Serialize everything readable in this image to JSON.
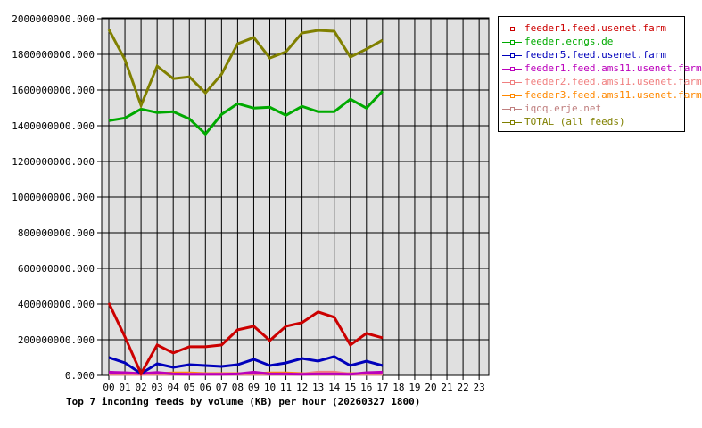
{
  "chart_data": {
    "type": "line",
    "title": "Top 7 incoming feeds by volume (KB) per hour (20260327 1800)",
    "xlabel": "",
    "ylabel": "",
    "ylim": [
      0,
      2000000000
    ],
    "y_ticks": [
      "0.000",
      "200000000.000",
      "400000000.000",
      "600000000.000",
      "800000000.000",
      "1000000000.000",
      "1200000000.000",
      "1400000000.000",
      "1600000000.000",
      "1800000000.000",
      "2000000000.000"
    ],
    "categories": [
      "00",
      "01",
      "02",
      "03",
      "04",
      "05",
      "06",
      "07",
      "08",
      "09",
      "10",
      "11",
      "12",
      "13",
      "14",
      "15",
      "16",
      "17",
      "18",
      "19",
      "20",
      "21",
      "22",
      "23"
    ],
    "grid": true,
    "legend_position": "right",
    "series": [
      {
        "name": "feeder1.feed.usenet.farm",
        "color": "#cc0000",
        "values": [
          405000000,
          215000000,
          10000000,
          170000000,
          125000000,
          160000000,
          160000000,
          170000000,
          255000000,
          275000000,
          195000000,
          275000000,
          295000000,
          355000000,
          325000000,
          170000000,
          235000000,
          210000000
        ]
      },
      {
        "name": "feeder.ecngs.de",
        "color": "#00aa00",
        "values": [
          1425000000,
          1440000000,
          1490000000,
          1470000000,
          1475000000,
          1435000000,
          1350000000,
          1460000000,
          1520000000,
          1495000000,
          1500000000,
          1455000000,
          1505000000,
          1475000000,
          1475000000,
          1545000000,
          1495000000,
          1590000000
        ]
      },
      {
        "name": "feeder5.feed.usenet.farm",
        "color": "#0000bb",
        "values": [
          100000000,
          70000000,
          10000000,
          65000000,
          45000000,
          60000000,
          55000000,
          50000000,
          60000000,
          90000000,
          55000000,
          70000000,
          95000000,
          80000000,
          105000000,
          55000000,
          80000000,
          55000000
        ]
      },
      {
        "name": "feeder1.feed.ams11.usenet.farm",
        "color": "#bb00bb",
        "values": [
          18000000,
          15000000,
          10000000,
          16000000,
          8000000,
          6000000,
          6000000,
          6000000,
          8000000,
          18000000,
          8000000,
          8000000,
          6000000,
          8000000,
          8000000,
          6000000,
          15000000,
          18000000
        ]
      },
      {
        "name": "feeder2.feed.ams11.usenet.farm",
        "color": "#f08080",
        "values": [
          8000000,
          8000000,
          5000000,
          8000000,
          8000000,
          8000000,
          8000000,
          8000000,
          8000000,
          8000000,
          8000000,
          8000000,
          8000000,
          18000000,
          18000000,
          8000000,
          8000000,
          8000000
        ]
      },
      {
        "name": "feeder3.feed.ams11.usenet.farm",
        "color": "#ff8800",
        "values": [
          10000000,
          10000000,
          12000000,
          10000000,
          14000000,
          14000000,
          10000000,
          10000000,
          10000000,
          10000000,
          14000000,
          14000000,
          10000000,
          10000000,
          10000000,
          10000000,
          10000000,
          10000000
        ]
      },
      {
        "name": "iqoq.erje.net",
        "color": "#c08080",
        "values": [
          5000000,
          5000000,
          5000000,
          5000000,
          5000000,
          5000000,
          5000000,
          5000000,
          5000000,
          5000000,
          5000000,
          5000000,
          5000000,
          5000000,
          5000000,
          5000000,
          5000000,
          5000000
        ]
      },
      {
        "name": "TOTAL (all feeds)",
        "color": "#808000",
        "values": [
          1935000000,
          1765000000,
          1510000000,
          1730000000,
          1660000000,
          1670000000,
          1580000000,
          1685000000,
          1855000000,
          1890000000,
          1775000000,
          1810000000,
          1915000000,
          1930000000,
          1925000000,
          1780000000,
          1825000000,
          1875000000
        ]
      }
    ]
  }
}
